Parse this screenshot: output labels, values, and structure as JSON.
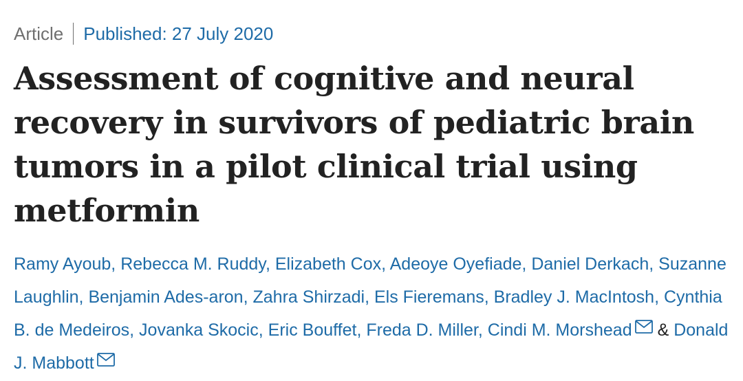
{
  "meta": {
    "article_type": "Article",
    "published": "Published: 27 July 2020"
  },
  "title_lines": [
    "Assessment of cognitive and neural",
    "recovery in survivors of pediatric brain",
    "tumors in a pilot clinical trial using",
    "metformin"
  ],
  "authors": [
    "Ramy Ayoub",
    "Rebecca M. Ruddy",
    "Elizabeth Cox",
    "Adeoye Oyefiade",
    "Daniel Derkach",
    "Suzanne Laughlin",
    "Benjamin Ades-aron",
    "Zahra Shirzadi",
    "Els Fieremans",
    "Bradley J. MacIntosh",
    "Cynthia B. de Medeiros",
    "Jovanka Skocic",
    "Eric Bouffet",
    "Freda D. Miller",
    "Cindi M. Morshead",
    "Donald J. Mabbott"
  ],
  "author_separator": ", ",
  "conjunction": "&",
  "colors": {
    "link": "#1e6ba7",
    "title": "#222222",
    "muted": "#6f6f6f"
  },
  "icons": {
    "corresponding_author": "mail-icon"
  }
}
